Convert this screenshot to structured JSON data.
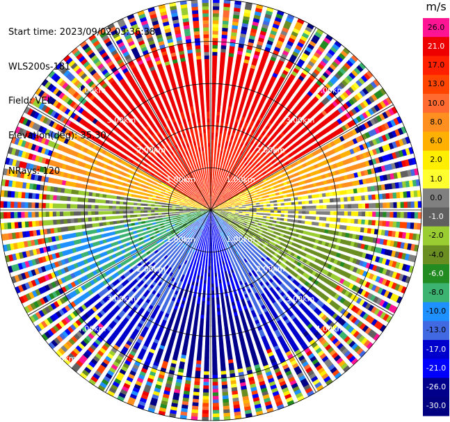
{
  "header": {
    "start_time": "Start time: 2023/09/02 03:36:38",
    "instrument": "WLS200s-181",
    "field": "Field: VEL",
    "elevation": "Elevation(deg): 35.30",
    "nrays": "NRays: 120"
  },
  "chart_data": {
    "type": "heatmap",
    "projection": "polar-ppi",
    "field": "VEL",
    "units": "m/s",
    "n_rays": 120,
    "range_max_km": 5.0,
    "range_rings_km": [
      1.0,
      2.0,
      3.0,
      4.0,
      5.0
    ],
    "range_ring_labels": [
      "1.00km",
      "2.00km",
      "3.00km",
      "4.00km",
      "5.00km"
    ],
    "azimuth_spokes_deg": [
      0,
      30,
      60,
      90,
      120,
      150,
      180,
      210,
      240,
      270,
      300,
      330
    ],
    "colorbar": {
      "title": "m/s",
      "tick_labels": [
        "26.0",
        "21.0",
        "17.0",
        "13.0",
        "10.0",
        "8.0",
        "6.0",
        "2.0",
        "1.0",
        "0.0",
        "-1.0",
        "-2.0",
        "-4.0",
        "-6.0",
        "-8.0",
        "-10.0",
        "-13.0",
        "-17.0",
        "-21.0",
        "-26.0",
        "-30.0"
      ],
      "colors": [
        "#ff1493",
        "#ee0000",
        "#ff2000",
        "#ff4500",
        "#ff6a30",
        "#ff9020",
        "#ffb000",
        "#ffee00",
        "#ffff30",
        "#808080",
        "#606060",
        "#9acd32",
        "#6b8e23",
        "#228b22",
        "#3cb371",
        "#1e90ff",
        "#4169e1",
        "#0000cd",
        "#0000ff",
        "#00008b",
        "#000080"
      ]
    },
    "structure": {
      "noise_start_km": 4.0,
      "sectors": [
        {
          "az_from": 300,
          "az_to": 60,
          "velocity": 17.0
        },
        {
          "az_from": 60,
          "az_to": 80,
          "velocity": 6.0
        },
        {
          "az_from": 80,
          "az_to": 100,
          "velocity": 1.0
        },
        {
          "az_from": 100,
          "az_to": 130,
          "velocity": -2.0
        },
        {
          "az_from": 130,
          "az_to": 160,
          "velocity": -10.0
        },
        {
          "az_from": 160,
          "az_to": 200,
          "velocity": -17.0
        },
        {
          "az_from": 200,
          "az_to": 235,
          "velocity": -10.0
        },
        {
          "az_from": 235,
          "az_to": 260,
          "velocity": -6.0
        },
        {
          "az_from": 260,
          "az_to": 280,
          "velocity": -1.0
        },
        {
          "az_from": 280,
          "az_to": 300,
          "velocity": 6.0
        }
      ]
    }
  }
}
